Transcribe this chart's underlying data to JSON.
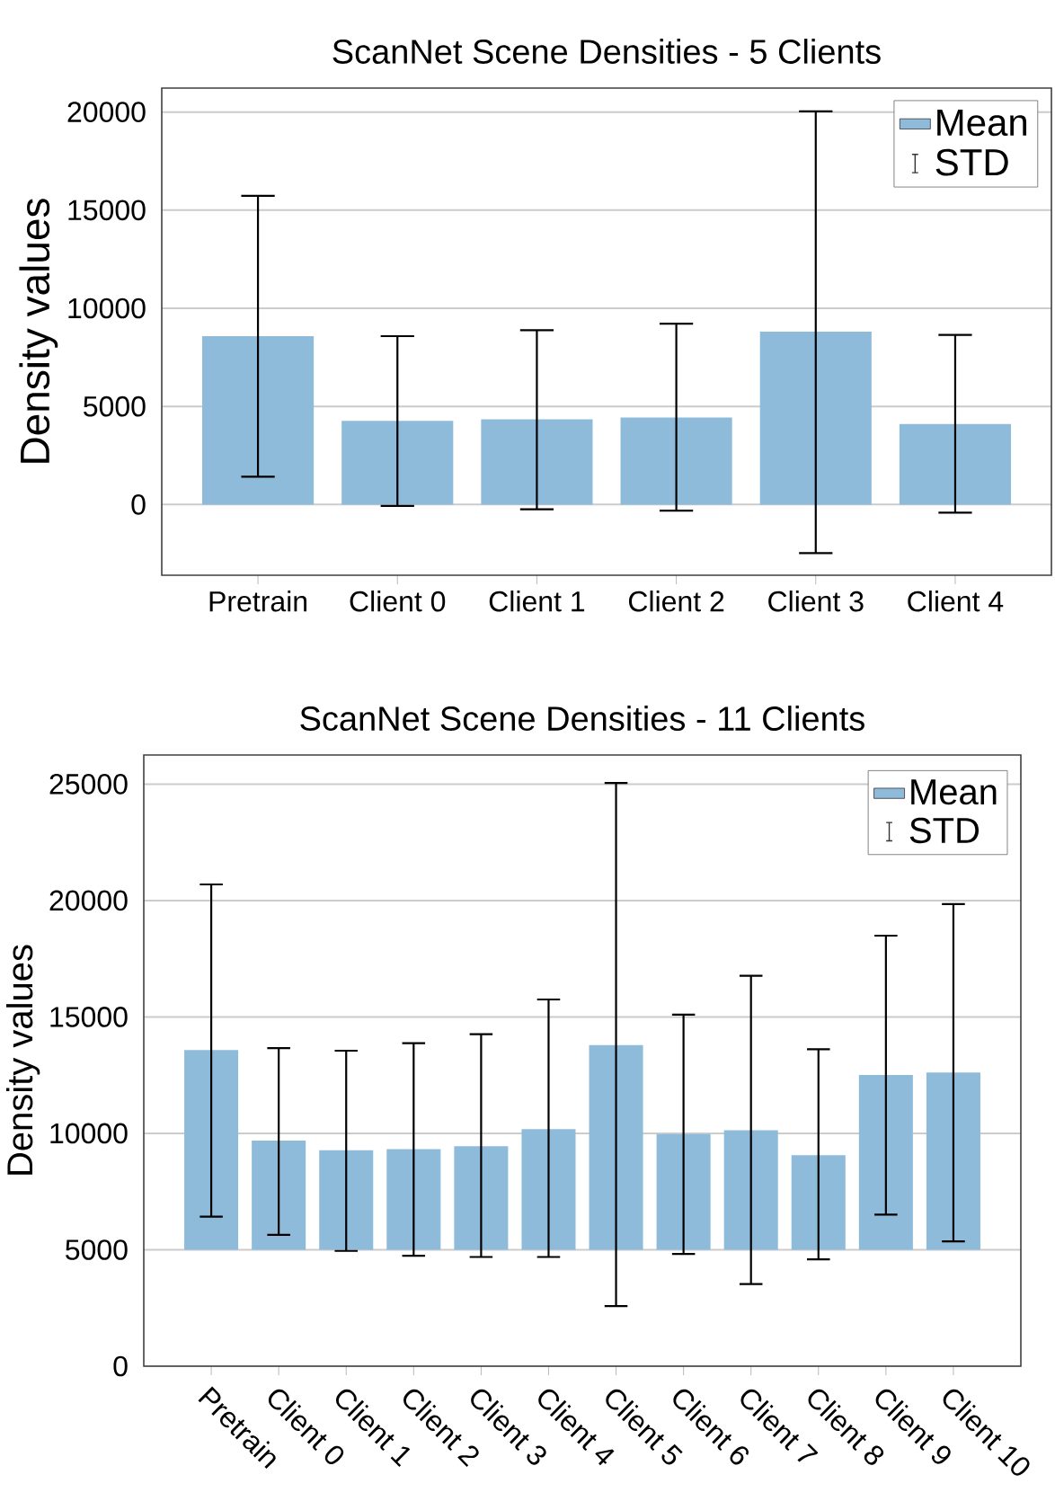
{
  "chart_data": [
    {
      "type": "bar",
      "title": "ScanNet Scene Densities - 5 Clients",
      "ylabel": "Density values",
      "categories": [
        "Pretrain",
        "Client 0",
        "Client 1",
        "Client 2",
        "Client 3",
        "Client 4"
      ],
      "series": [
        {
          "name": "Mean",
          "color": "#8fbbdb",
          "values": [
            8580,
            4270,
            4340,
            4440,
            8810,
            4100
          ],
          "errors": [
            [
              1420,
              15730
            ],
            [
              -70,
              8580
            ],
            [
              -240,
              8880
            ],
            [
              -310,
              9220
            ],
            [
              -2470,
              20030
            ],
            [
              -410,
              8640
            ]
          ]
        }
      ],
      "ylim": [
        -3600,
        21220
      ],
      "yticks": [
        0,
        5000,
        10000,
        15000,
        20000
      ],
      "grid": "y",
      "legend": "top right",
      "annotations": [
        "STD"
      ]
    },
    {
      "type": "bar",
      "title": "ScanNet Scene Densities - 11 Clients",
      "ylabel": "Density values",
      "categories": [
        "Pretrain",
        "Client 0",
        "Client 1",
        "Client 2",
        "Client 3",
        "Client 4",
        "Client 5",
        "Client 6",
        "Client 7",
        "Client 8",
        "Client 9",
        "Client 10"
      ],
      "series": [
        {
          "name": "Mean",
          "color": "#8fbbdb",
          "base": [
            5000,
            5000,
            5000,
            5000,
            5000,
            5000,
            5000,
            5000,
            5000,
            5000,
            5000,
            5000
          ],
          "values": [
            8580,
            4690,
            4270,
            4320,
            4450,
            5180,
            8790,
            4970,
            5130,
            4060,
            7510,
            7610
          ],
          "errors": [
            [
              6420,
              20690
            ],
            [
              5640,
              13660
            ],
            [
              4950,
              13550
            ],
            [
              4740,
              13870
            ],
            [
              4690,
              14260
            ],
            [
              4690,
              15750
            ],
            [
              2580,
              25050
            ],
            [
              4820,
              15100
            ],
            [
              3530,
              16770
            ],
            [
              4590,
              13610
            ],
            [
              6510,
              18490
            ],
            [
              5360,
              19850
            ]
          ]
        }
      ],
      "ylim": [
        0,
        26250
      ],
      "yticks": [
        0,
        5000,
        10000,
        15000,
        20000,
        25000
      ],
      "grid": "y",
      "legend": "top right",
      "annotations": [
        "STD"
      ]
    }
  ]
}
